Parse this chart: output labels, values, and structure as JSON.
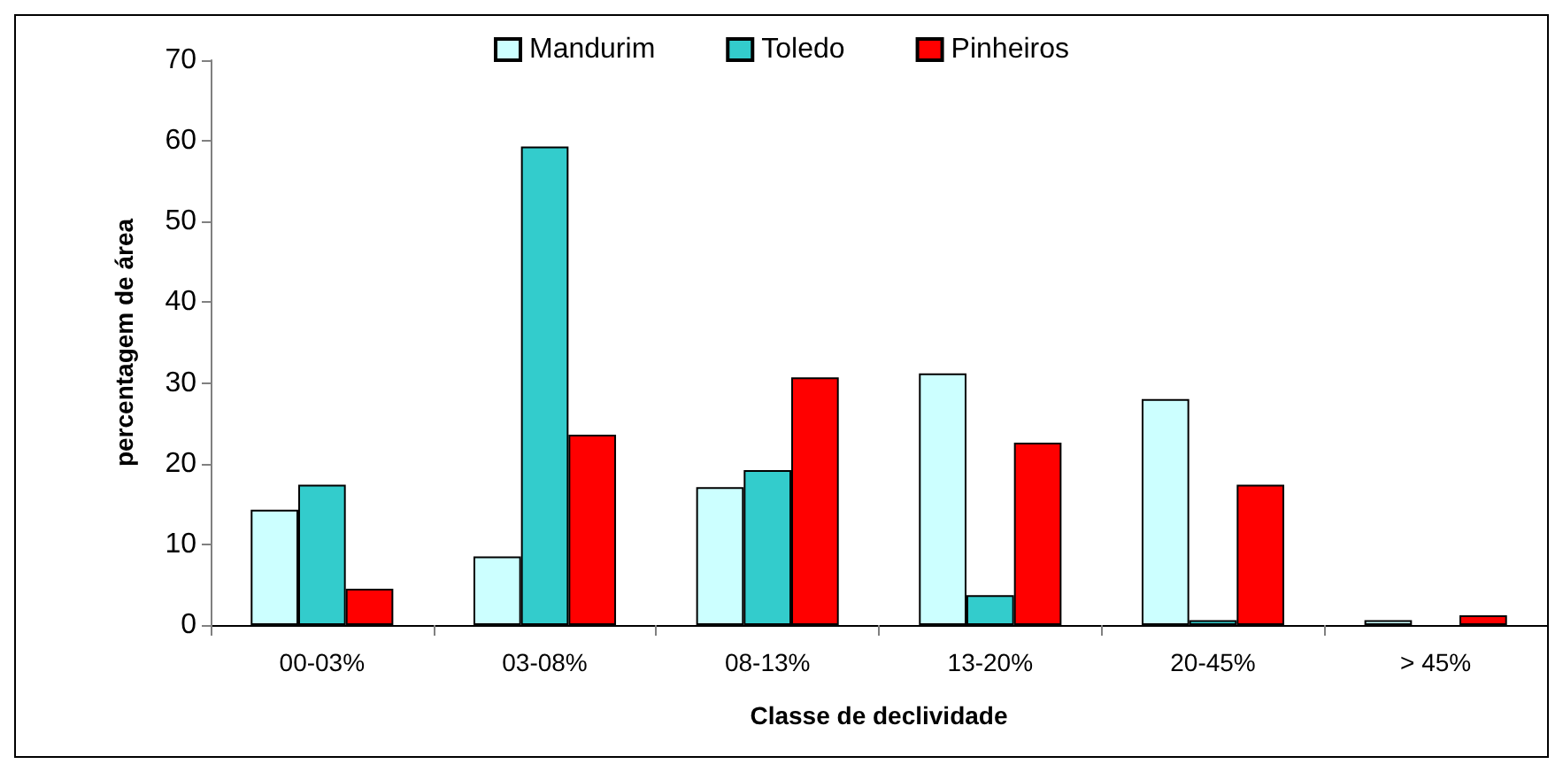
{
  "chart_data": {
    "type": "bar",
    "xlabel": "Classe de declividade",
    "ylabel": "percentagem de área",
    "categories": [
      "00-03%",
      "03-08%",
      "08-13%",
      "13-20%",
      "20-45%",
      "> 45%"
    ],
    "series": [
      {
        "name": "Mandurim",
        "color": "#ccffff",
        "values": [
          14.3,
          8.5,
          17.1,
          31.2,
          28.0,
          0.6
        ]
      },
      {
        "name": "Toledo",
        "color": "#33cccc",
        "values": [
          17.4,
          59.3,
          19.2,
          3.7,
          0.6,
          null
        ]
      },
      {
        "name": "Pinheiros",
        "color": "#ff0000",
        "values": [
          4.5,
          23.6,
          30.7,
          22.6,
          17.4,
          1.2
        ]
      }
    ],
    "ylim": [
      0,
      70
    ],
    "yticks": [
      0,
      10,
      20,
      30,
      40,
      50,
      60,
      70
    ],
    "grid": false,
    "legend": "top"
  }
}
